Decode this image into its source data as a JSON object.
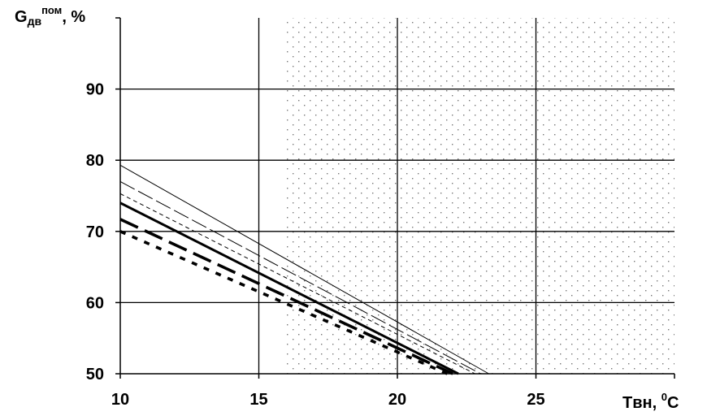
{
  "chart_data": {
    "type": "line",
    "xlabel": {
      "main": "Tвн, ",
      "sup": "0",
      "tail": "C"
    },
    "ylabel": {
      "main": "G",
      "sub": "дв",
      "sup": "пом",
      "tail": ", %"
    },
    "xlim": [
      10,
      30
    ],
    "ylim": [
      50,
      100
    ],
    "x_ticks": [
      10,
      15,
      20,
      25
    ],
    "x_tick_labels": [
      "10",
      "15",
      "20",
      "25"
    ],
    "y_ticks": [
      50,
      60,
      70,
      80,
      90
    ],
    "y_tick_labels": [
      "50",
      "60",
      "70",
      "80",
      "90"
    ],
    "grid": true,
    "shaded_region": {
      "x_from": 16,
      "x_to": 30,
      "pattern": "dotted"
    },
    "series": [
      {
        "x": [
          10,
          23.3
        ],
        "y": [
          79.3,
          50
        ],
        "style": "thin-solid"
      },
      {
        "x": [
          10,
          23.0
        ],
        "y": [
          77.0,
          50
        ],
        "style": "thin-long-dash"
      },
      {
        "x": [
          10,
          22.8
        ],
        "y": [
          75.3,
          50
        ],
        "style": "thin-short-dash"
      },
      {
        "x": [
          10,
          22.2
        ],
        "y": [
          74.0,
          50
        ],
        "style": "thick-solid"
      },
      {
        "x": [
          10,
          22.0
        ],
        "y": [
          71.7,
          50
        ],
        "style": "thick-long-dash"
      },
      {
        "x": [
          10,
          21.8
        ],
        "y": [
          70.0,
          50
        ],
        "style": "thick-short-dash"
      }
    ]
  }
}
